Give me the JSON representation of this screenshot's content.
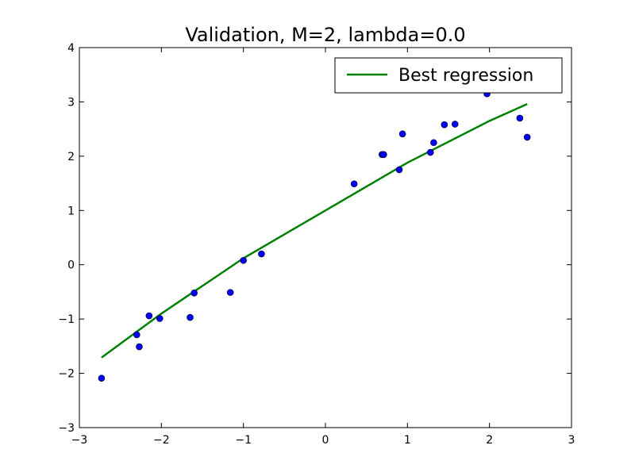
{
  "chart_data": {
    "type": "scatter",
    "title": "Validation, M=2, lambda=0.0",
    "xlabel": "",
    "ylabel": "",
    "xlim": [
      -3,
      3
    ],
    "ylim": [
      -3,
      4
    ],
    "xticks": [
      -3,
      -2,
      -1,
      0,
      1,
      2,
      3
    ],
    "yticks": [
      -3,
      -2,
      -1,
      0,
      1,
      2,
      3,
      4
    ],
    "xtick_labels": [
      "−3",
      "−2",
      "−1",
      "0",
      "1",
      "2",
      "3"
    ],
    "ytick_labels": [
      "−3",
      "−2",
      "−1",
      "0",
      "1",
      "2",
      "3",
      "4"
    ],
    "grid": false,
    "legend_position": "upper-right",
    "colors": {
      "points": "#0000ff",
      "line": "#008000"
    },
    "points": [
      {
        "x": -2.73,
        "y": -2.09
      },
      {
        "x": -2.3,
        "y": -1.29
      },
      {
        "x": -2.27,
        "y": -1.51
      },
      {
        "x": -2.15,
        "y": -0.94
      },
      {
        "x": -2.02,
        "y": -0.99
      },
      {
        "x": -1.65,
        "y": -0.97
      },
      {
        "x": -1.6,
        "y": -0.52
      },
      {
        "x": -1.16,
        "y": -0.51
      },
      {
        "x": -1.0,
        "y": 0.08
      },
      {
        "x": -0.78,
        "y": 0.2
      },
      {
        "x": 0.35,
        "y": 1.49
      },
      {
        "x": 0.69,
        "y": 2.03
      },
      {
        "x": 0.71,
        "y": 2.03
      },
      {
        "x": 0.9,
        "y": 1.75
      },
      {
        "x": 0.94,
        "y": 2.41
      },
      {
        "x": 1.28,
        "y": 2.07
      },
      {
        "x": 1.32,
        "y": 2.25
      },
      {
        "x": 1.45,
        "y": 2.58
      },
      {
        "x": 1.58,
        "y": 2.59
      },
      {
        "x": 1.97,
        "y": 3.15
      },
      {
        "x": 2.37,
        "y": 2.7
      },
      {
        "x": 2.46,
        "y": 2.35
      }
    ],
    "series": [
      {
        "name": "Best regression",
        "type": "line",
        "x": [
          -2.73,
          -2.0,
          -1.0,
          0.0,
          1.0,
          2.0,
          2.46
        ],
        "y": [
          -1.71,
          -0.9,
          0.12,
          1.0,
          1.88,
          2.65,
          2.96
        ]
      }
    ]
  }
}
